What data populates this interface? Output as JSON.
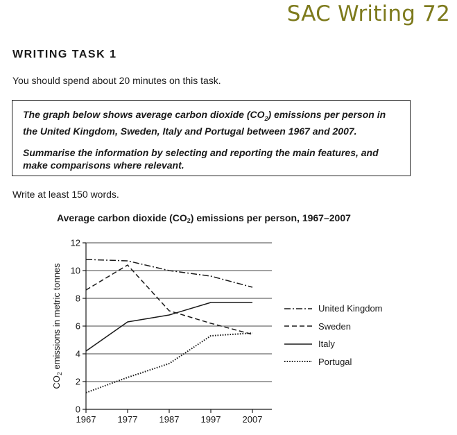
{
  "page": {
    "brand": "SAC Writing 72",
    "task_title": "WRITING TASK 1",
    "instruction": "You should spend about 20 minutes on this task.",
    "prompt_paragraph_1": "The graph below shows average carbon dioxide (CO2) emissions per person in the United Kingdom, Sweden, Italy and Portugal between 1967 and 2007.",
    "prompt_paragraph_2": "Summarise the information by selecting and reporting the main features, and make comparisons where relevant.",
    "word_count": "Write at least 150 words."
  },
  "chart_data": {
    "type": "line",
    "title": "Average carbon dioxide (CO2) emissions per person, 1967–2007",
    "title_parts": {
      "before": "Average carbon dioxide (CO",
      "sub": "2",
      "after": ") emissions per person, 1967–2007"
    },
    "xlabel": "",
    "ylabel": "CO2 emissions in metric tonnes",
    "ylabel_parts": {
      "before": "CO",
      "sub": "2",
      "after": " emissions in metric tonnes"
    },
    "x": [
      1967,
      1977,
      1987,
      1997,
      2007
    ],
    "x_tick_labels": [
      "1967",
      "1977",
      "1987",
      "1997",
      "2007"
    ],
    "y_ticks": [
      0,
      2,
      4,
      6,
      8,
      10,
      12
    ],
    "y_tick_labels": [
      "0",
      "2",
      "4",
      "6",
      "8",
      "10",
      "12"
    ],
    "ylim": [
      0,
      12
    ],
    "grid": "horizontal",
    "legend_position": "right",
    "line_color": "#1a1a1a",
    "series": [
      {
        "name": "United Kingdom",
        "style": "dash-dot",
        "values": [
          10.8,
          10.7,
          10.0,
          9.6,
          8.8
        ]
      },
      {
        "name": "Sweden",
        "style": "dashed",
        "values": [
          8.6,
          10.4,
          7.1,
          6.2,
          5.4
        ]
      },
      {
        "name": "Italy",
        "style": "solid",
        "values": [
          4.2,
          6.3,
          6.8,
          7.7,
          7.7
        ]
      },
      {
        "name": "Portugal",
        "style": "dotted",
        "values": [
          1.2,
          2.3,
          3.3,
          5.3,
          5.5
        ]
      }
    ]
  }
}
